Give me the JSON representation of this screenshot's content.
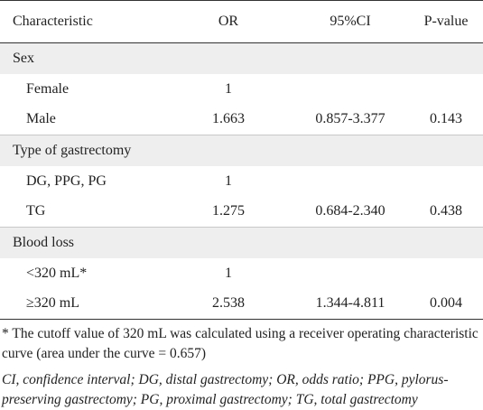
{
  "table": {
    "headers": [
      "Characteristic",
      "OR",
      "95%CI",
      "P-value"
    ],
    "rows": [
      {
        "type": "group",
        "label": "Sex"
      },
      {
        "type": "row",
        "label": "Female",
        "or": "1",
        "ci": "",
        "p": ""
      },
      {
        "type": "row",
        "label": "Male",
        "or": "1.663",
        "ci": "0.857-3.377",
        "p": "0.143"
      },
      {
        "type": "group",
        "label": "Type of gastrectomy"
      },
      {
        "type": "row",
        "label": "DG, PPG, PG",
        "or": "1",
        "ci": "",
        "p": ""
      },
      {
        "type": "row",
        "label": "TG",
        "or": "1.275",
        "ci": "0.684-2.340",
        "p": "0.438"
      },
      {
        "type": "group",
        "label": "Blood loss"
      },
      {
        "type": "row",
        "label": "<320 mL*",
        "or": "1",
        "ci": "",
        "p": ""
      },
      {
        "type": "row",
        "label": "≥320 mL",
        "or": "2.538",
        "ci": "1.344-4.811",
        "p": "0.004"
      }
    ]
  },
  "footnote": "* The cutoff value of 320 mL was calculated using a receiver operating characteristic curve (area under the curve = 0.657)",
  "abbreviations": "CI, confidence interval; DG, distal gastrectomy; OR, odds ratio; PPG, pylorus-preserving gastrectomy; PG, proximal gastrectomy; TG, total gastrectomy"
}
